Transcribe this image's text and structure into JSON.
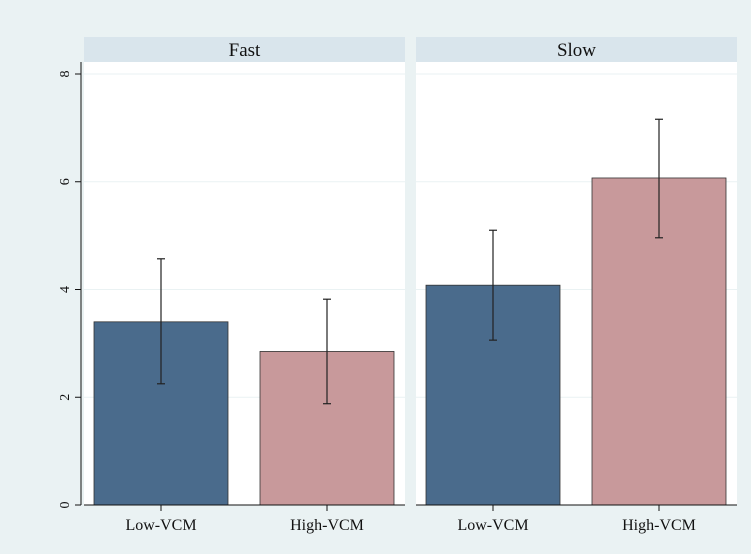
{
  "chart_data": {
    "type": "bar",
    "panels": [
      {
        "title": "Fast",
        "categories": [
          "Low-VCM",
          "High-VCM"
        ],
        "values": [
          3.4,
          2.85
        ],
        "ci_low": [
          2.25,
          1.88
        ],
        "ci_high": [
          4.57,
          3.82
        ]
      },
      {
        "title": "Slow",
        "categories": [
          "Low-VCM",
          "High-VCM"
        ],
        "values": [
          4.08,
          6.07
        ],
        "ci_low": [
          3.06,
          4.96
        ],
        "ci_high": [
          5.1,
          7.16
        ]
      }
    ],
    "y_ticks": [
      0,
      2,
      4,
      6,
      8
    ],
    "ylim": [
      0,
      8
    ],
    "grid": true,
    "legend": "none",
    "colors": {
      "Low-VCM": "#4a6b8c",
      "High-VCM": "#c8999b",
      "figure_background": "#eaf2f3",
      "plot_background": "#ffffff",
      "panel_header": "#d9e5ec",
      "gridline": "#eaf2f3",
      "error_bar": "#222222"
    }
  }
}
